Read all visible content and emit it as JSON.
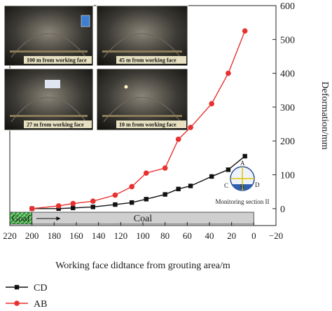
{
  "chart_data": {
    "type": "line",
    "xlabel": "Working face didtance from grouting area/m",
    "ylabel": "Deformation/mm",
    "xlim": [
      220,
      -20
    ],
    "ylim": [
      -50,
      600
    ],
    "x_ticks": [
      "220",
      "200",
      "180",
      "160",
      "140",
      "120",
      "100",
      "80",
      "60",
      "40",
      "20",
      "0",
      "−20"
    ],
    "x_tick_values": [
      220,
      200,
      180,
      160,
      140,
      120,
      100,
      80,
      60,
      40,
      20,
      0,
      -20
    ],
    "y_ticks": [
      "0",
      "100",
      "200",
      "300",
      "400",
      "500",
      "600"
    ],
    "y_tick_values": [
      0,
      100,
      200,
      300,
      400,
      500,
      600
    ],
    "legend_position": "bottom-left",
    "series": [
      {
        "name": "CD",
        "color": "#111111",
        "marker": "square",
        "x": [
          200,
          176,
          163,
          145,
          125,
          110,
          97,
          80,
          68,
          57,
          38,
          23,
          8
        ],
        "y": [
          0,
          0,
          2,
          5,
          12,
          18,
          28,
          42,
          58,
          67,
          95,
          115,
          155
        ]
      },
      {
        "name": "AB",
        "color": "#e8302f",
        "marker": "circle",
        "x": [
          200,
          176,
          163,
          145,
          125,
          110,
          97,
          80,
          68,
          57,
          38,
          23,
          8
        ],
        "y": [
          0,
          8,
          15,
          22,
          40,
          65,
          105,
          120,
          205,
          240,
          310,
          400,
          525
        ]
      }
    ],
    "bands": [
      {
        "label": "Goaf",
        "from": 220,
        "to": 200,
        "color": "#3aa845"
      },
      {
        "label": "Coal",
        "from": 200,
        "to": 0,
        "color": "#cfcfcf"
      }
    ],
    "photos": [
      {
        "caption": "100 m from working face"
      },
      {
        "caption": "45 m from working face"
      },
      {
        "caption": "27 m from working face"
      },
      {
        "caption": "10 m from working face"
      }
    ],
    "monitoring": {
      "label": "Monitoring section II",
      "point_a": "A",
      "point_b": "B",
      "point_c": "C",
      "point_d": "D"
    }
  }
}
